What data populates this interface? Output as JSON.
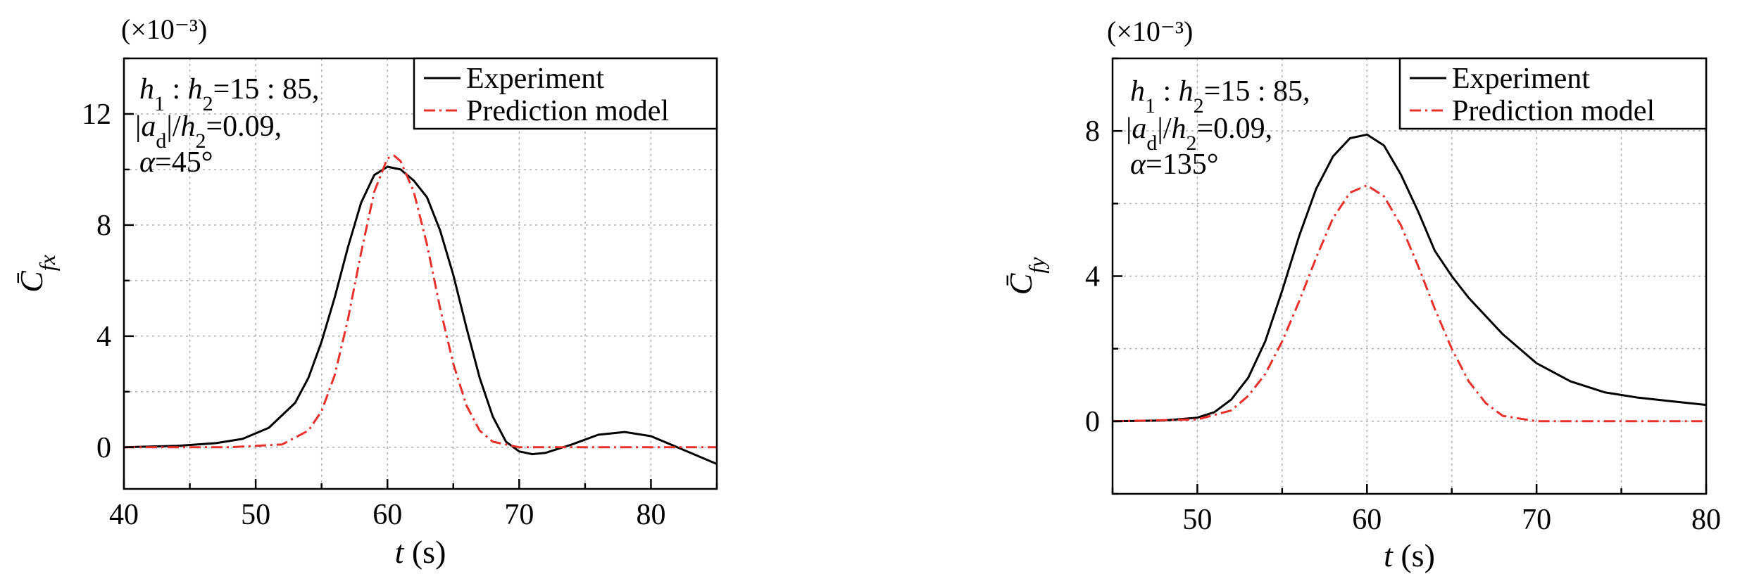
{
  "chart_data": [
    {
      "type": "line",
      "panel_id": "panel_a",
      "multiplier": "(×10⁻³)",
      "xlabel": "t (s)",
      "ylabel": "C̄fx",
      "xlim": [
        40,
        85
      ],
      "ylim": [
        -1.5,
        14
      ],
      "xticks": [
        40,
        50,
        60,
        70,
        80
      ],
      "yticks": [
        0,
        4,
        8,
        12
      ],
      "grid": true,
      "legend_position": "top-right",
      "annotation": [
        "h1 : h2=15 : 85,",
        "|ad|/h2=0.09,",
        "α=45°"
      ],
      "series": [
        {
          "name": "Experiment",
          "color": "#000000",
          "style": "solid",
          "x": [
            40,
            44,
            47,
            49,
            51,
            53,
            54,
            55,
            56,
            57,
            58,
            59,
            60,
            61,
            62,
            63,
            64,
            65,
            66,
            67,
            68,
            69,
            70,
            71,
            72,
            74,
            76,
            78,
            80,
            82,
            85
          ],
          "y": [
            0.0,
            0.05,
            0.15,
            0.3,
            0.7,
            1.6,
            2.5,
            3.8,
            5.4,
            7.2,
            8.8,
            9.8,
            10.1,
            10.0,
            9.6,
            9.0,
            7.8,
            6.2,
            4.3,
            2.5,
            1.1,
            0.2,
            -0.15,
            -0.25,
            -0.2,
            0.1,
            0.45,
            0.55,
            0.4,
            0.0,
            -0.6
          ]
        },
        {
          "name": "Prediction model",
          "color": "#e8302a",
          "style": "dashdot",
          "x": [
            40,
            48,
            52,
            54,
            55,
            56,
            57,
            58,
            59,
            60,
            60.5,
            61,
            62,
            63,
            64,
            65,
            66,
            67,
            68,
            70,
            75,
            85
          ],
          "y": [
            0.0,
            0.0,
            0.1,
            0.6,
            1.3,
            2.6,
            4.6,
            7.0,
            9.2,
            10.4,
            10.5,
            10.3,
            9.2,
            7.3,
            5.0,
            3.0,
            1.5,
            0.6,
            0.2,
            0.0,
            0.0,
            0.0
          ]
        }
      ]
    },
    {
      "type": "line",
      "panel_id": "panel_b",
      "multiplier": "(×10⁻³)",
      "xlabel": "t (s)",
      "ylabel": "C̄fy",
      "xlim": [
        45,
        80
      ],
      "ylim": [
        -2,
        10
      ],
      "xticks": [
        50,
        60,
        70,
        80
      ],
      "yticks": [
        0,
        4,
        8
      ],
      "grid": true,
      "legend_position": "top-right",
      "annotation": [
        "h1 : h2=15 : 85,",
        "|ad|/h2=0.09,",
        "α=135°"
      ],
      "series": [
        {
          "name": "Experiment",
          "color": "#000000",
          "style": "solid",
          "x": [
            45,
            48,
            50,
            51,
            52,
            53,
            54,
            55,
            56,
            57,
            58,
            59,
            60,
            61,
            62,
            63,
            64,
            65,
            66,
            67,
            68,
            70,
            72,
            74,
            76,
            78,
            80
          ],
          "y": [
            0.0,
            0.02,
            0.1,
            0.25,
            0.6,
            1.2,
            2.2,
            3.6,
            5.1,
            6.4,
            7.3,
            7.8,
            7.9,
            7.6,
            6.8,
            5.8,
            4.7,
            4.0,
            3.4,
            2.9,
            2.4,
            1.6,
            1.1,
            0.8,
            0.65,
            0.55,
            0.45
          ]
        },
        {
          "name": "Prediction model",
          "color": "#e8302a",
          "style": "dashdot",
          "x": [
            45,
            50,
            52,
            53,
            54,
            55,
            56,
            57,
            58,
            59,
            60,
            61,
            62,
            63,
            64,
            65,
            66,
            67,
            68,
            70,
            75,
            80
          ],
          "y": [
            0.0,
            0.05,
            0.3,
            0.7,
            1.3,
            2.2,
            3.3,
            4.5,
            5.6,
            6.3,
            6.5,
            6.2,
            5.4,
            4.3,
            3.1,
            2.0,
            1.1,
            0.5,
            0.15,
            0.0,
            0.0,
            0.0
          ]
        }
      ]
    }
  ]
}
